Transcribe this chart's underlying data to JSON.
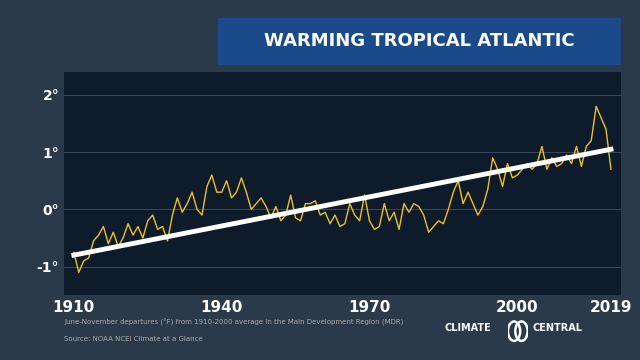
{
  "title": "WARMING TROPICAL ATLANTIC",
  "title_bg_color": "#1a4a8a",
  "title_text_color": "#ffffff",
  "chart_bg_color": "#0d1b2a",
  "outer_bg_color": "#2a3a4a",
  "line_color": "#f0c020",
  "trend_color": "#ffffff",
  "grid_color": "#3a4a5a",
  "tick_color": "#ffffff",
  "xlabel_values": [
    1910,
    1940,
    1970,
    2000,
    2019
  ],
  "ytick_labels": [
    "-1°",
    "0°",
    "1°",
    "2°"
  ],
  "ytick_values": [
    -1,
    0,
    1,
    2
  ],
  "ylim": [
    -1.5,
    2.4
  ],
  "xlim": [
    1908,
    2021
  ],
  "footnote_line1": "June-November departures (°F) from 1910-2000 average in the Main Development Region (MDR)",
  "footnote_line2": "Source: NOAA NCEI Climate at a Glance",
  "years": [
    1910,
    1911,
    1912,
    1913,
    1914,
    1915,
    1916,
    1917,
    1918,
    1919,
    1920,
    1921,
    1922,
    1923,
    1924,
    1925,
    1926,
    1927,
    1928,
    1929,
    1930,
    1931,
    1932,
    1933,
    1934,
    1935,
    1936,
    1937,
    1938,
    1939,
    1940,
    1941,
    1942,
    1943,
    1944,
    1945,
    1946,
    1947,
    1948,
    1949,
    1950,
    1951,
    1952,
    1953,
    1954,
    1955,
    1956,
    1957,
    1958,
    1959,
    1960,
    1961,
    1962,
    1963,
    1964,
    1965,
    1966,
    1967,
    1968,
    1969,
    1970,
    1971,
    1972,
    1973,
    1974,
    1975,
    1976,
    1977,
    1978,
    1979,
    1980,
    1981,
    1982,
    1983,
    1984,
    1985,
    1986,
    1987,
    1988,
    1989,
    1990,
    1991,
    1992,
    1993,
    1994,
    1995,
    1996,
    1997,
    1998,
    1999,
    2000,
    2001,
    2002,
    2003,
    2004,
    2005,
    2006,
    2007,
    2008,
    2009,
    2010,
    2011,
    2012,
    2013,
    2014,
    2015,
    2016,
    2017,
    2018,
    2019
  ],
  "values": [
    -0.75,
    -1.1,
    -0.9,
    -0.85,
    -0.55,
    -0.45,
    -0.3,
    -0.6,
    -0.4,
    -0.65,
    -0.5,
    -0.25,
    -0.45,
    -0.3,
    -0.5,
    -0.2,
    -0.1,
    -0.35,
    -0.3,
    -0.55,
    -0.1,
    0.2,
    -0.05,
    0.1,
    0.3,
    0.0,
    -0.1,
    0.4,
    0.6,
    0.3,
    0.3,
    0.5,
    0.2,
    0.3,
    0.55,
    0.3,
    0.0,
    0.1,
    0.2,
    0.05,
    -0.15,
    0.05,
    -0.2,
    -0.1,
    0.25,
    -0.15,
    -0.2,
    0.1,
    0.1,
    0.15,
    -0.1,
    -0.05,
    -0.25,
    -0.1,
    -0.3,
    -0.25,
    0.1,
    -0.1,
    -0.2,
    0.25,
    -0.2,
    -0.35,
    -0.3,
    0.1,
    -0.2,
    -0.05,
    -0.35,
    0.1,
    -0.05,
    0.1,
    0.05,
    -0.1,
    -0.4,
    -0.3,
    -0.2,
    -0.25,
    0.0,
    0.3,
    0.5,
    0.1,
    0.3,
    0.1,
    -0.1,
    0.05,
    0.35,
    0.9,
    0.7,
    0.4,
    0.8,
    0.55,
    0.6,
    0.7,
    0.8,
    0.7,
    0.8,
    1.1,
    0.7,
    0.9,
    0.75,
    0.8,
    0.95,
    0.8,
    1.1,
    0.75,
    1.1,
    1.2,
    1.8,
    1.6,
    1.4,
    0.7
  ],
  "trend_x": [
    1910,
    2019
  ],
  "trend_y": [
    -0.8,
    1.05
  ]
}
